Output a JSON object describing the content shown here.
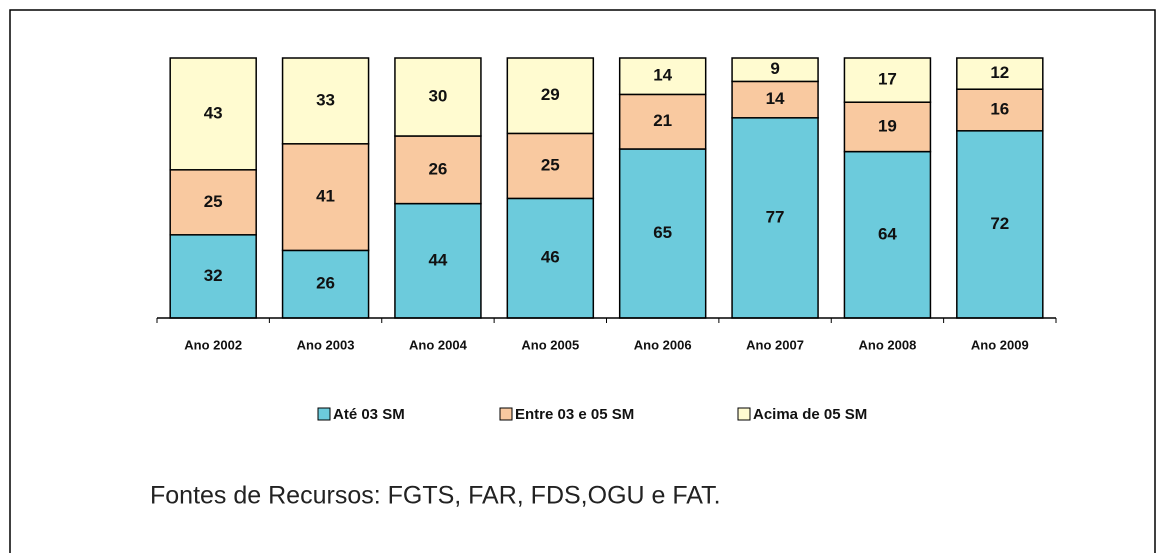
{
  "chart_data": {
    "type": "stacked_bar",
    "categories": [
      "Ano 2002",
      "Ano 2003",
      "Ano 2004",
      "Ano 2005",
      "Ano 2006",
      "Ano 2007",
      "Ano 2008",
      "Ano 2009"
    ],
    "series": [
      {
        "name": "Até 03 SM",
        "color": "#6ccbdc",
        "values": [
          32,
          26,
          44,
          46,
          65,
          77,
          64,
          72
        ]
      },
      {
        "name": "Entre 03 e 05 SM",
        "color": "#f9c9a0",
        "values": [
          25,
          41,
          26,
          25,
          21,
          14,
          19,
          16
        ]
      },
      {
        "name": "Acima de 05 SM",
        "color": "#fffbd0",
        "values": [
          43,
          33,
          30,
          29,
          14,
          9,
          17,
          12
        ]
      }
    ],
    "ylim": [
      0,
      100
    ],
    "legend": "bottom"
  },
  "footer": "Fontes de Recursos: FGTS, FAR, FDS,OGU e FAT."
}
